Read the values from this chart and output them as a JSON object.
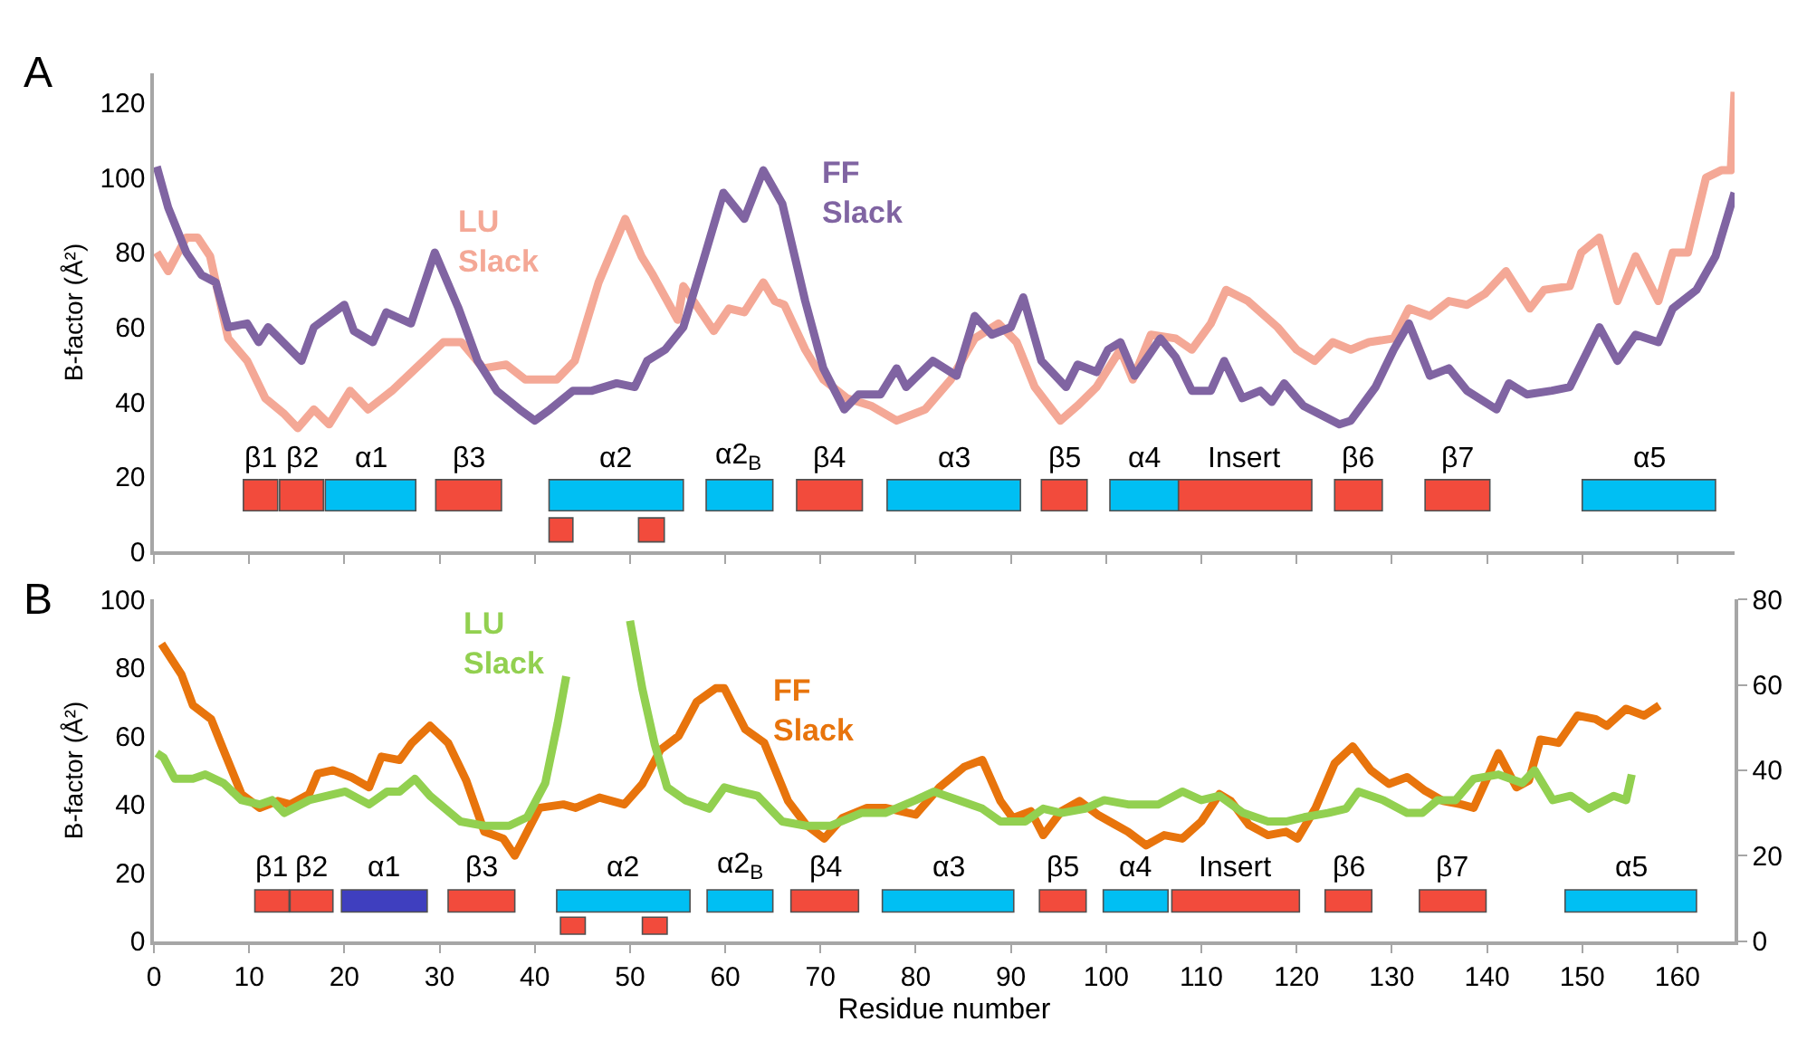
{
  "chart_data": [
    {
      "type": "line",
      "title": "A",
      "ylabel": "B-factor (Å²)",
      "xlim": [
        0,
        166
      ],
      "xticks": [
        0,
        10,
        20,
        30,
        40,
        50,
        60,
        70,
        80,
        90,
        100,
        110,
        120,
        130,
        140,
        150,
        160
      ],
      "ylim": [
        0,
        128
      ],
      "yticks": [
        0,
        20,
        40,
        60,
        80,
        100,
        120
      ],
      "tick_labels": "y",
      "line_style": "solid",
      "series": [
        {
          "name": "LU Slack",
          "color": "#f4a896",
          "x": [
            0.3,
            1.5,
            3.4,
            4.6,
            5.9,
            7.8,
            9.8,
            11.7,
            13.6,
            15.1,
            16.8,
            18.4,
            20.6,
            22.5,
            25,
            27.5,
            30.4,
            32.3,
            34.6,
            37,
            39,
            42.3,
            44.2,
            46.7,
            49.5,
            51.2,
            52.4,
            55,
            55.6,
            58.8,
            60.4,
            62,
            64,
            65.2,
            66.2,
            68.4,
            70.3,
            72.8,
            75.3,
            78,
            81,
            83.7,
            86.2,
            88.7,
            90.6,
            92.5,
            95.2,
            97,
            99,
            101.5,
            102.8,
            104.7,
            107.3,
            109,
            111,
            112.6,
            114.9,
            118,
            120,
            121.9,
            123.8,
            125.7,
            127.6,
            130.2,
            131.8,
            134,
            136,
            137.9,
            139.8,
            142,
            144.5,
            146,
            148.7,
            149.9,
            151.8,
            153.7,
            155.6,
            158,
            159.5,
            161.1,
            163,
            164.6,
            165.6,
            166
          ],
          "values": [
            80,
            75,
            84,
            84,
            79,
            57,
            51,
            41,
            37,
            33,
            38,
            34,
            43,
            38,
            43,
            49,
            56,
            56,
            49,
            50,
            46,
            46,
            51,
            72,
            89,
            79,
            74,
            62,
            71,
            59,
            65,
            64,
            72,
            67,
            66,
            54,
            46,
            41,
            39,
            35,
            38,
            46,
            57,
            61,
            56,
            44,
            35,
            39,
            44,
            54,
            46,
            58,
            57,
            54,
            61,
            70,
            67,
            60,
            54,
            51,
            56,
            54,
            56,
            57,
            65,
            63,
            67,
            66,
            69,
            75,
            65,
            70,
            71,
            80,
            84,
            67,
            79,
            67,
            80,
            80,
            100,
            102,
            102,
            123
          ]
        },
        {
          "name": "FF Slack",
          "color": "#8064a2",
          "x": [
            0.3,
            1.5,
            3.4,
            5,
            6.5,
            7.8,
            9.8,
            11,
            12,
            15.5,
            16.8,
            20,
            21,
            23,
            24.4,
            27,
            29.5,
            32,
            34,
            36,
            38.4,
            40,
            41.6,
            44,
            46,
            48.6,
            50.5,
            51.8,
            53.7,
            55.6,
            57.6,
            59.8,
            62,
            64,
            66,
            68.4,
            70.3,
            72.5,
            74,
            76.3,
            78,
            79,
            81.8,
            84.3,
            86.2,
            88,
            90,
            91.3,
            93.2,
            95.8,
            97,
            99,
            100.2,
            101.5,
            103,
            105.7,
            107.3,
            109,
            111,
            112.4,
            114.3,
            116.2,
            117.4,
            118.7,
            120.7,
            124.5,
            125.7,
            128.3,
            130.2,
            131.8,
            134,
            136,
            137.9,
            141,
            142.3,
            144.2,
            146.8,
            148.7,
            151.8,
            153.7,
            155.6,
            158,
            159.5,
            162,
            164,
            166
          ],
          "values": [
            103,
            92,
            80,
            74,
            72,
            60,
            61,
            56,
            60,
            51,
            60,
            66,
            59,
            56,
            64,
            61,
            80,
            65,
            51,
            43,
            38,
            35,
            38,
            43,
            43,
            45,
            44,
            51,
            54,
            60,
            77,
            96,
            89,
            102,
            93,
            67,
            49,
            38,
            42,
            42,
            49,
            44,
            51,
            47,
            63,
            58,
            60,
            68,
            51,
            44,
            50,
            48,
            54,
            56,
            47,
            57,
            52,
            43,
            43,
            51,
            41,
            43,
            40,
            45,
            39,
            34,
            35,
            44,
            54,
            61,
            47,
            49,
            43,
            38,
            45,
            42,
            43,
            44,
            60,
            51,
            58,
            56,
            65,
            70,
            79,
            96
          ]
        }
      ],
      "bands": [
        {
          "axis": "x",
          "from": 9.4,
          "to": 13,
          "label": "β1",
          "color": "#f24b3c"
        },
        {
          "axis": "x",
          "from": 13.2,
          "to": 17.8,
          "label": "β2",
          "color": "#f24b3c"
        },
        {
          "axis": "x",
          "from": 18,
          "to": 27.5,
          "label": "α1",
          "color": "#00bff3"
        },
        {
          "axis": "x",
          "from": 29.6,
          "to": 36.5,
          "label": "β3",
          "color": "#f24b3c"
        },
        {
          "axis": "x",
          "from": 41.5,
          "to": 44,
          "label": null,
          "color": "#f24b3c"
        },
        {
          "axis": "x",
          "from": 41.5,
          "to": 55.6,
          "label": "α2",
          "color": "#00bff3"
        },
        {
          "axis": "x",
          "from": 50.9,
          "to": 53.6,
          "label": null,
          "color": "#f24b3c"
        },
        {
          "axis": "x",
          "from": 58,
          "to": 65,
          "label": "α2$_{B}$",
          "color": "#00bff3"
        },
        {
          "axis": "x",
          "from": 67.5,
          "to": 74.4,
          "label": "β4",
          "color": "#f24b3c"
        },
        {
          "axis": "x",
          "from": 77,
          "to": 91,
          "label": "α3",
          "color": "#00bff3"
        },
        {
          "axis": "x",
          "from": 93.2,
          "to": 98,
          "label": "β5",
          "color": "#f24b3c"
        },
        {
          "axis": "x",
          "from": 100.4,
          "to": 107.6,
          "label": "α4",
          "color": "#00bff3"
        },
        {
          "axis": "x",
          "from": 107.6,
          "to": 121.6,
          "label": "Insert",
          "color": "#f24b3c"
        },
        {
          "axis": "x",
          "from": 124,
          "to": 129,
          "label": "β6",
          "color": "#f24b3c"
        },
        {
          "axis": "x",
          "from": 133.5,
          "to": 140.3,
          "label": "β7",
          "color": "#f24b3c"
        },
        {
          "axis": "x",
          "from": 150,
          "to": 164,
          "label": "α5",
          "color": "#00bff3"
        }
      ]
    },
    {
      "type": "line",
      "title": "B",
      "xlabel": "Residue number",
      "ylabel": "B-factor (Å²)",
      "xlim": [
        0,
        166
      ],
      "xticks": [
        0,
        10,
        20,
        30,
        40,
        50,
        60,
        70,
        80,
        90,
        100,
        110,
        120,
        130,
        140,
        150,
        160
      ],
      "ylim": [
        0,
        100
      ],
      "yticks": [
        0,
        20,
        40,
        60,
        80,
        100
      ],
      "y2lim": [
        0,
        80
      ],
      "y2ticks": [
        0,
        20,
        40,
        60,
        80
      ],
      "line_style": "solid",
      "series": [
        {
          "name": "LU Slack",
          "color": "#92d050",
          "axis": "y2",
          "x": [
            0.3,
            1,
            2.2,
            4.1,
            5.4,
            7.3,
            9.2,
            11.1,
            12.4,
            13.7,
            16.3,
            18.2,
            20.1,
            22.6,
            24.5,
            25.8,
            27.4,
            29,
            32.2,
            34.7,
            37.3,
            39.2,
            41.1,
            42.4,
            43.3,
            46,
            50,
            51.3,
            52.6,
            53.9,
            55.8,
            58.3,
            59.9,
            61.5,
            63.4,
            66,
            68.5,
            71.1,
            74.3,
            76.8,
            80,
            81.9,
            84.5,
            87,
            88.9,
            91.5,
            93.4,
            95.3,
            97.8,
            99.8,
            102.3,
            105.5,
            108,
            110,
            111.9,
            114.4,
            117,
            118.9,
            120.8,
            123.3,
            125.2,
            126.5,
            129.1,
            131.6,
            133.2,
            134.8,
            136.7,
            138.6,
            141.2,
            143.7,
            145,
            146.9,
            148.8,
            150.7,
            153.3,
            154.6,
            155.2
          ],
          "values": [
            44,
            43,
            38,
            38,
            39,
            37,
            33,
            32,
            33,
            30,
            33,
            34,
            35,
            32,
            35,
            35,
            38,
            34,
            28,
            27,
            27,
            29,
            37,
            51,
            62,
            null,
            75,
            59,
            46,
            36,
            33,
            31,
            36,
            35,
            34,
            28,
            27,
            27,
            30,
            30,
            33,
            35,
            33,
            31,
            28,
            28,
            31,
            30,
            31,
            33,
            32,
            32,
            35,
            33,
            34,
            30,
            28,
            28,
            29,
            30,
            31,
            35,
            33,
            30,
            30,
            33,
            33,
            38,
            39,
            37,
            40,
            33,
            34,
            31,
            34,
            33,
            39
          ]
        },
        {
          "name": "FF Slack",
          "color": "#e8740c",
          "x": [
            0.8,
            2.9,
            4.1,
            6,
            7.3,
            9.2,
            11.1,
            13,
            14.3,
            16.3,
            17.2,
            18.8,
            20.7,
            22.6,
            23.9,
            25.8,
            27.1,
            29,
            30.9,
            32.8,
            34.7,
            36.7,
            37.9,
            39.2,
            40.5,
            43,
            44.3,
            46.8,
            49.4,
            51.3,
            53.2,
            55.1,
            57,
            59,
            59.9,
            62.1,
            64.1,
            66.6,
            68.5,
            70.4,
            72.3,
            74.9,
            76.8,
            80,
            82.5,
            85.1,
            87,
            88.9,
            90.2,
            92.1,
            93.4,
            95.3,
            97.2,
            99.1,
            101,
            102.3,
            104.2,
            106.1,
            108,
            110,
            111.9,
            113.1,
            115,
            117,
            118.9,
            120.1,
            122,
            124,
            125.9,
            127.8,
            129.7,
            131.6,
            133.5,
            135.4,
            137.3,
            138.6,
            141.2,
            143.1,
            144.4,
            145.6,
            147.5,
            149.5,
            151.4,
            152.6,
            154.6,
            156.5,
            158.1
          ],
          "values": [
            87,
            78,
            69,
            65,
            56,
            43,
            39,
            41,
            40,
            43,
            49,
            50,
            48,
            45,
            54,
            53,
            58,
            63,
            58,
            47,
            32,
            30,
            25,
            32,
            39,
            40,
            39,
            42,
            40,
            46,
            56,
            60,
            70,
            74,
            74,
            62,
            58,
            41,
            34,
            30,
            36,
            39,
            39,
            37,
            45,
            51,
            53,
            41,
            36,
            38,
            31,
            38,
            41,
            37,
            34,
            32,
            28,
            31,
            30,
            35,
            43,
            41,
            34,
            31,
            32,
            30,
            39,
            52,
            57,
            50,
            46,
            48,
            44,
            41,
            40,
            39,
            55,
            45,
            47,
            59,
            58,
            66,
            65,
            63,
            68,
            66,
            69
          ]
        }
      ],
      "bands": [
        {
          "axis": "x",
          "from": 10.6,
          "to": 14.2,
          "label": "β1",
          "color": "#f24b3c"
        },
        {
          "axis": "x",
          "from": 14.3,
          "to": 18.8,
          "label": "β2",
          "color": "#f24b3c"
        },
        {
          "axis": "x",
          "from": 19.7,
          "to": 28.7,
          "label": "α1",
          "color": "#3f3fbf"
        },
        {
          "axis": "x",
          "from": 30.9,
          "to": 37.9,
          "label": "β3",
          "color": "#f24b3c"
        },
        {
          "axis": "x",
          "from": 42.7,
          "to": 45.3,
          "label": null,
          "color": "#f24b3c"
        },
        {
          "axis": "x",
          "from": 42.3,
          "to": 56.3,
          "label": "α2",
          "color": "#00bff3"
        },
        {
          "axis": "x",
          "from": 51.3,
          "to": 53.9,
          "label": null,
          "color": "#f24b3c"
        },
        {
          "axis": "x",
          "from": 58.1,
          "to": 65,
          "label": "α2$_{B}$",
          "color": "#00bff3"
        },
        {
          "axis": "x",
          "from": 66.9,
          "to": 74,
          "label": "β4",
          "color": "#f24b3c"
        },
        {
          "axis": "x",
          "from": 76.5,
          "to": 90.3,
          "label": "α3",
          "color": "#00bff3"
        },
        {
          "axis": "x",
          "from": 93,
          "to": 97.9,
          "label": "β5",
          "color": "#f24b3c"
        },
        {
          "axis": "x",
          "from": 99.7,
          "to": 106.5,
          "label": "α4",
          "color": "#00bff3"
        },
        {
          "axis": "x",
          "from": 106.9,
          "to": 120.3,
          "label": "Insert",
          "color": "#f24b3c"
        },
        {
          "axis": "x",
          "from": 123,
          "to": 127.9,
          "label": "β6",
          "color": "#f24b3c"
        },
        {
          "axis": "x",
          "from": 132.9,
          "to": 139.9,
          "label": "β7",
          "color": "#f24b3c"
        },
        {
          "axis": "x",
          "from": 148.2,
          "to": 162,
          "label": "α5",
          "color": "#00bff3"
        }
      ]
    }
  ]
}
